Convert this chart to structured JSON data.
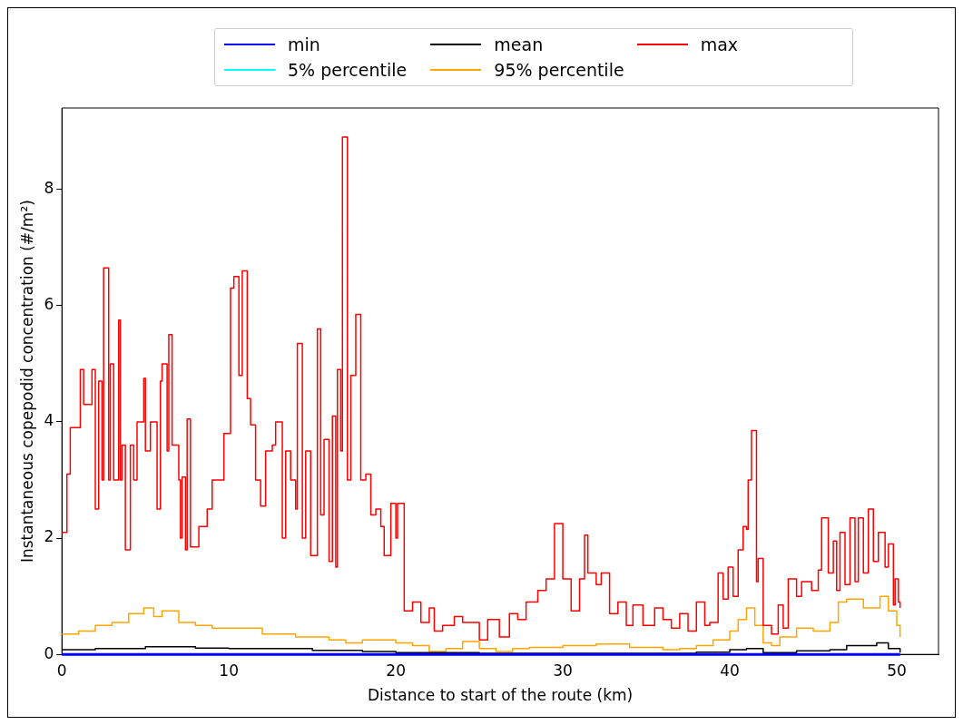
{
  "chart_data": {
    "type": "step",
    "xlabel": "Distance to start of the route (km)",
    "ylabel": "Instantaneous copepodid concentration (#/m²)",
    "xlim": [
      0,
      52.5
    ],
    "xticks": [
      0,
      10,
      20,
      30,
      40,
      50
    ],
    "ylim": [
      0,
      9.4
    ],
    "yticks": [
      0,
      2,
      4,
      6,
      8
    ],
    "grid": false,
    "legend": "top",
    "series": [
      {
        "name": "min",
        "color": "#0000ff",
        "x": [
          0,
          10,
          20,
          30,
          40,
          50.2
        ],
        "values": [
          0,
          0,
          0,
          0,
          0,
          0
        ]
      },
      {
        "name": "mean",
        "color": "#000000",
        "x": [
          0,
          2,
          5,
          8,
          10,
          15,
          18,
          20,
          25,
          30,
          35,
          38,
          40,
          41,
          42,
          44,
          46,
          47,
          48.8,
          49.5,
          50.2
        ],
        "values": [
          0.08,
          0.1,
          0.13,
          0.11,
          0.1,
          0.07,
          0.05,
          0.03,
          0.02,
          0.02,
          0.02,
          0.04,
          0.08,
          0.1,
          0.03,
          0.06,
          0.08,
          0.15,
          0.2,
          0.1,
          0.03
        ]
      },
      {
        "name": "max",
        "color": "#ff0000",
        "x": [
          0,
          0.3,
          0.5,
          1.1,
          1.3,
          1.8,
          2.0,
          2.2,
          2.4,
          2.5,
          2.8,
          2.9,
          3.1,
          3.4,
          3.5,
          3.6,
          3.8,
          4.1,
          4.3,
          4.5,
          4.9,
          5.0,
          5.3,
          5.7,
          5.9,
          6.0,
          6.3,
          6.4,
          6.6,
          7.0,
          7.1,
          7.2,
          7.4,
          7.5,
          7.7,
          8.2,
          8.7,
          9.0,
          9.7,
          10.1,
          10.3,
          10.6,
          10.8,
          11.1,
          11.3,
          11.6,
          11.9,
          12.2,
          12.6,
          12.8,
          13.2,
          13.4,
          13.7,
          14.0,
          14.1,
          14.4,
          14.6,
          14.9,
          15.3,
          15.5,
          15.7,
          16.0,
          16.2,
          16.4,
          16.5,
          16.7,
          16.8,
          17.1,
          17.3,
          17.6,
          17.9,
          18.2,
          18.5,
          18.8,
          19.1,
          19.3,
          19.7,
          20.0,
          20.1,
          20.5,
          21.0,
          21.5,
          22.0,
          22.3,
          22.8,
          23.5,
          24.0,
          25.0,
          25.5,
          26.2,
          26.8,
          27.3,
          27.8,
          28.5,
          29.0,
          29.5,
          30.0,
          30.5,
          31.0,
          31.3,
          31.5,
          32.0,
          32.3,
          32.8,
          33.3,
          33.8,
          34.2,
          34.8,
          35.5,
          36.0,
          36.5,
          37.0,
          37.5,
          38.0,
          38.5,
          38.8,
          39.3,
          39.6,
          39.9,
          40.2,
          40.5,
          40.8,
          41.0,
          41.1,
          41.3,
          41.6,
          41.7,
          42.0,
          42.5,
          42.9,
          43.2,
          43.5,
          44.0,
          44.3,
          44.9,
          45.3,
          45.5,
          45.9,
          46.2,
          46.4,
          46.6,
          46.9,
          47.2,
          47.5,
          47.7,
          48.0,
          48.3,
          48.6,
          48.9,
          49.3,
          49.5,
          49.8,
          49.9,
          50.1,
          50.2
        ],
        "values": [
          2.1,
          3.1,
          3.9,
          4.9,
          4.3,
          4.9,
          2.5,
          4.7,
          3.0,
          6.65,
          3.0,
          5.0,
          3.0,
          5.75,
          3.0,
          3.6,
          1.8,
          3.6,
          3.0,
          4.0,
          4.75,
          3.5,
          4.0,
          2.5,
          4.7,
          5.0,
          3.5,
          5.5,
          3.6,
          3.0,
          2.0,
          3.05,
          1.8,
          4.05,
          1.85,
          2.2,
          2.5,
          3.0,
          3.8,
          6.3,
          6.5,
          4.8,
          6.6,
          4.4,
          3.95,
          3.0,
          2.55,
          3.5,
          3.6,
          4.0,
          2.0,
          3.5,
          3.0,
          2.5,
          5.35,
          2.0,
          3.5,
          1.7,
          5.6,
          2.4,
          3.7,
          1.6,
          4.1,
          1.5,
          4.9,
          3.5,
          8.9,
          3.0,
          4.8,
          5.85,
          3.0,
          3.1,
          2.4,
          2.5,
          2.2,
          1.7,
          2.6,
          2.0,
          2.6,
          0.75,
          0.9,
          0.55,
          0.8,
          0.4,
          0.5,
          0.65,
          0.55,
          0.25,
          0.6,
          0.3,
          0.7,
          0.6,
          0.9,
          1.1,
          1.3,
          2.25,
          1.3,
          0.75,
          1.3,
          2.05,
          1.4,
          1.2,
          1.4,
          0.7,
          0.9,
          0.5,
          0.85,
          0.5,
          0.8,
          0.6,
          0.45,
          0.7,
          0.4,
          0.9,
          0.5,
          0.55,
          1.4,
          0.95,
          1.5,
          1.0,
          1.8,
          2.2,
          2.15,
          3.0,
          3.85,
          1.25,
          1.65,
          0.5,
          0.35,
          0.85,
          0.45,
          1.3,
          1.0,
          1.25,
          1.1,
          1.45,
          2.35,
          1.4,
          1.95,
          1.1,
          2.1,
          1.2,
          2.35,
          1.25,
          2.35,
          1.4,
          2.5,
          1.6,
          2.1,
          1.5,
          1.9,
          0.85,
          1.3,
          0.9,
          0.8
        ]
      },
      {
        "name": "5% percentile",
        "color": "#00ffff",
        "values": [
          null
        ]
      },
      {
        "name": "95% percentile",
        "color": "#ffa500",
        "type": "step",
        "x": [
          0,
          1,
          2,
          3,
          4,
          4.9,
          5.5,
          6.0,
          7,
          8,
          9,
          10,
          12,
          14,
          16,
          17,
          18,
          20,
          21,
          22,
          23,
          24,
          25,
          26,
          27,
          28,
          30,
          32,
          34,
          36,
          37,
          38,
          39,
          40,
          40.5,
          41,
          41.5,
          42,
          42.5,
          43,
          44,
          45,
          46,
          46.5,
          47,
          48,
          49,
          49.5,
          50,
          50.2
        ],
        "values": [
          0.35,
          0.4,
          0.5,
          0.55,
          0.7,
          0.8,
          0.65,
          0.75,
          0.55,
          0.5,
          0.45,
          0.45,
          0.35,
          0.3,
          0.25,
          0.2,
          0.25,
          0.2,
          0.15,
          0.05,
          0.1,
          0.22,
          0.1,
          0.05,
          0.1,
          0.12,
          0.15,
          0.18,
          0.12,
          0.08,
          0.1,
          0.15,
          0.25,
          0.4,
          0.6,
          0.8,
          0.5,
          0.2,
          0.15,
          0.3,
          0.45,
          0.4,
          0.55,
          0.9,
          0.95,
          0.8,
          1.0,
          0.75,
          0.5,
          0.3
        ]
      }
    ]
  }
}
